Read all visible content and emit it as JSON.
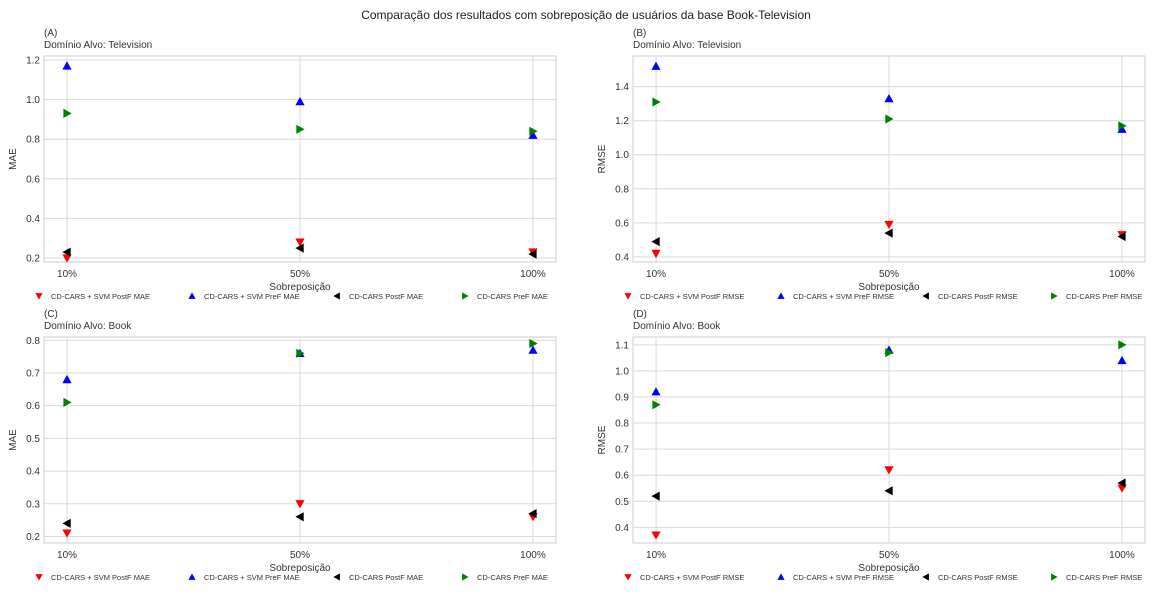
{
  "figure": {
    "title": "Comparação dos resultados com sobreposição de usuários da base Book-Television"
  },
  "legend_items": [
    {
      "label": "CD-CARS + SVM PostF",
      "marker": "triangle-down",
      "color": "#ff0000"
    },
    {
      "label": "CD-CARS + SVM PreF",
      "marker": "triangle-up",
      "color": "#0000ff"
    },
    {
      "label": "CD-CARS PostF",
      "marker": "triangle-left",
      "color": "#000000"
    },
    {
      "label": "CD-CARS PreF",
      "marker": "triangle-right",
      "color": "#008000"
    }
  ],
  "chart_data": [
    {
      "type": "scatter",
      "panel": "(A)",
      "subtitle": "Domínio Alvo: Television",
      "xlabel": "Sobreposição",
      "ylabel": "MAE",
      "metric": "MAE",
      "categories": [
        "10%",
        "50%",
        "100%"
      ],
      "ylim": [
        0.18,
        1.22
      ],
      "yticks": [
        0.2,
        0.4,
        0.6,
        0.8,
        1.0,
        1.2
      ],
      "grid": true,
      "legend_placement": "below",
      "series": [
        {
          "name": "CD-CARS + SVM PostF MAE",
          "values": [
            0.2,
            0.28,
            0.23
          ]
        },
        {
          "name": "CD-CARS + SVM PreF MAE",
          "values": [
            1.17,
            0.99,
            0.82
          ]
        },
        {
          "name": "CD-CARS PostF MAE",
          "values": [
            0.23,
            0.25,
            0.22
          ]
        },
        {
          "name": "CD-CARS PreF MAE",
          "values": [
            0.93,
            0.85,
            0.84
          ]
        }
      ]
    },
    {
      "type": "scatter",
      "panel": "(B)",
      "subtitle": "Domínio Alvo: Television",
      "xlabel": "Sobreposição",
      "ylabel": "RMSE",
      "metric": "RMSE",
      "categories": [
        "10%",
        "50%",
        "100%"
      ],
      "ylim": [
        0.37,
        1.58
      ],
      "yticks": [
        0.4,
        0.6,
        0.8,
        1.0,
        1.2,
        1.4
      ],
      "grid": true,
      "legend_placement": "below",
      "series": [
        {
          "name": "CD-CARS + SVM PostF RMSE",
          "values": [
            0.42,
            0.59,
            0.53
          ]
        },
        {
          "name": "CD-CARS + SVM PreF RMSE",
          "values": [
            1.52,
            1.33,
            1.15
          ]
        },
        {
          "name": "CD-CARS PostF RMSE",
          "values": [
            0.49,
            0.54,
            0.52
          ]
        },
        {
          "name": "CD-CARS PreF RMSE",
          "values": [
            1.31,
            1.21,
            1.17
          ]
        }
      ]
    },
    {
      "type": "scatter",
      "panel": "(C)",
      "subtitle": "Domínio Alvo: Book",
      "xlabel": "Sobreposição",
      "ylabel": "MAE",
      "metric": "MAE",
      "categories": [
        "10%",
        "50%",
        "100%"
      ],
      "ylim": [
        0.18,
        0.81
      ],
      "yticks": [
        0.2,
        0.3,
        0.4,
        0.5,
        0.6,
        0.7,
        0.8
      ],
      "grid": true,
      "legend_placement": "below",
      "series": [
        {
          "name": "CD-CARS + SVM PostF MAE",
          "values": [
            0.21,
            0.3,
            0.26
          ]
        },
        {
          "name": "CD-CARS + SVM PreF MAE",
          "values": [
            0.68,
            0.76,
            0.77
          ]
        },
        {
          "name": "CD-CARS PostF MAE",
          "values": [
            0.24,
            0.26,
            0.27
          ]
        },
        {
          "name": "CD-CARS PreF MAE",
          "values": [
            0.61,
            0.76,
            0.79
          ]
        }
      ]
    },
    {
      "type": "scatter",
      "panel": "(D)",
      "subtitle": "Domínio Alvo: Book",
      "xlabel": "Sobreposição",
      "ylabel": "RMSE",
      "metric": "RMSE",
      "categories": [
        "10%",
        "50%",
        "100%"
      ],
      "ylim": [
        0.34,
        1.13
      ],
      "yticks": [
        0.4,
        0.5,
        0.6,
        0.7,
        0.8,
        0.9,
        1.0,
        1.1
      ],
      "grid": true,
      "legend_placement": "below",
      "series": [
        {
          "name": "CD-CARS + SVM PostF RMSE",
          "values": [
            0.37,
            0.62,
            0.55
          ]
        },
        {
          "name": "CD-CARS + SVM PreF RMSE",
          "values": [
            0.92,
            1.08,
            1.04
          ]
        },
        {
          "name": "CD-CARS PostF RMSE",
          "values": [
            0.52,
            0.54,
            0.57
          ]
        },
        {
          "name": "CD-CARS PreF RMSE",
          "values": [
            0.87,
            1.07,
            1.1
          ]
        }
      ]
    }
  ]
}
